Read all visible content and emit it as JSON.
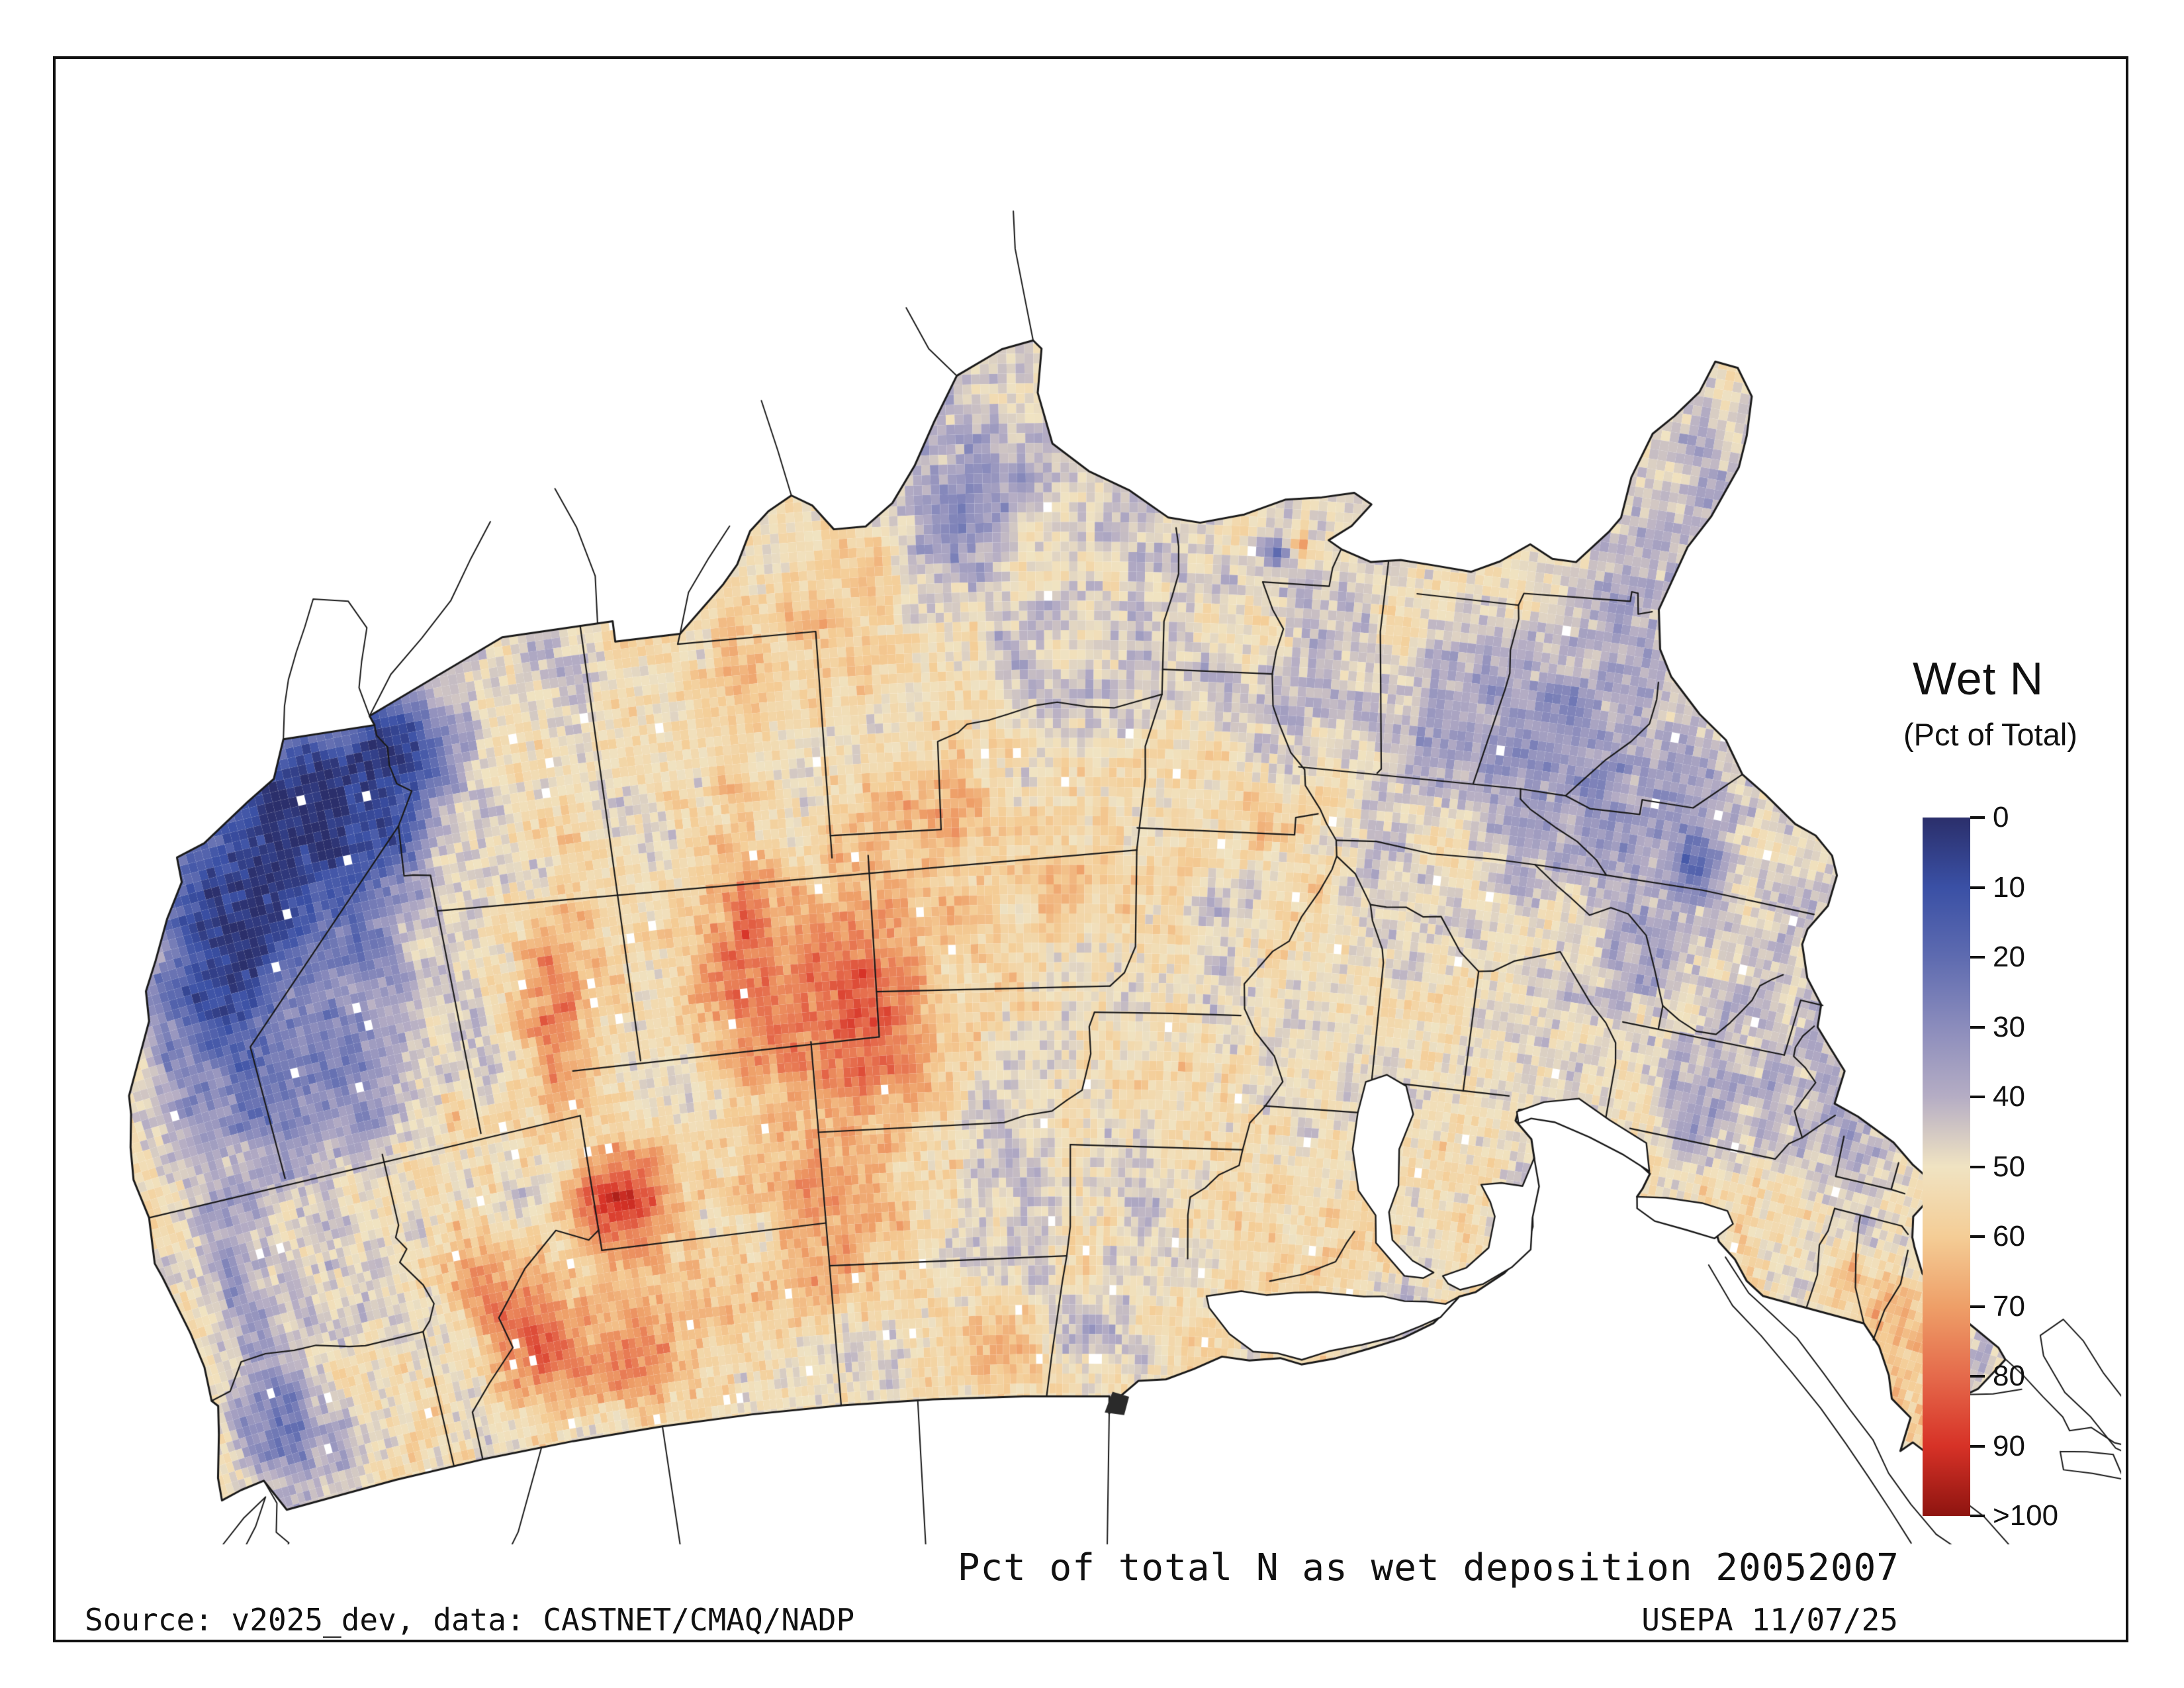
{
  "legend": {
    "title": "Wet N",
    "subtitle": "(Pct of Total)",
    "ticks": [
      "0",
      "10",
      "20",
      "30",
      "40",
      "50",
      "60",
      "70",
      "80",
      "90",
      ">100"
    ],
    "palette": [
      "#2b2f6b",
      "#3a50a5",
      "#5e6bb0",
      "#8b8cbc",
      "#b5adc4",
      "#f0e3c2",
      "#f4cd96",
      "#ee9f68",
      "#e56a4b",
      "#d73227",
      "#8e1410"
    ],
    "line_color": "#1a1a1a"
  },
  "caption": "Pct of total N as wet deposition 20052007",
  "footer": {
    "source": "Source: v2025_dev, data: CASTNET/CMAQ/NADP",
    "credit": "USEPA 11/07/25"
  }
}
